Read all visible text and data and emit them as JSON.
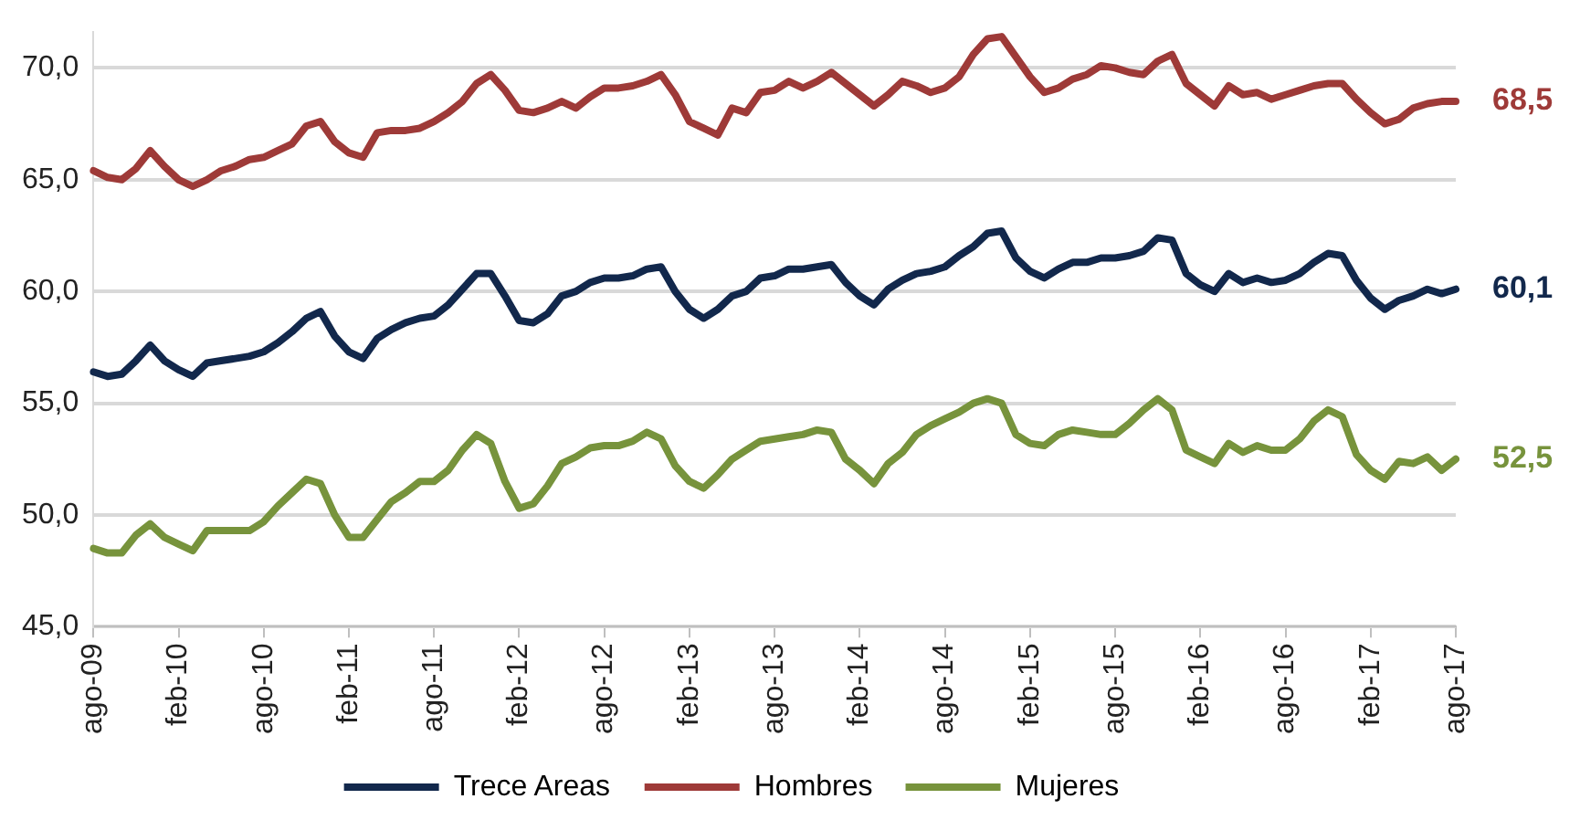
{
  "chart_data": {
    "type": "line",
    "categories": [
      "ago-09",
      null,
      null,
      null,
      null,
      null,
      "feb-10",
      null,
      null,
      null,
      null,
      null,
      "ago-10",
      null,
      null,
      null,
      null,
      null,
      "feb-11",
      null,
      null,
      null,
      null,
      null,
      "ago-11",
      null,
      null,
      null,
      null,
      null,
      "feb-12",
      null,
      null,
      null,
      null,
      null,
      "ago-12",
      null,
      null,
      null,
      null,
      null,
      "feb-13",
      null,
      null,
      null,
      null,
      null,
      "ago-13",
      null,
      null,
      null,
      null,
      null,
      "feb-14",
      null,
      null,
      null,
      null,
      null,
      "ago-14",
      null,
      null,
      null,
      null,
      null,
      "feb-15",
      null,
      null,
      null,
      null,
      null,
      "ago-15",
      null,
      null,
      null,
      null,
      null,
      "feb-16",
      null,
      null,
      null,
      null,
      null,
      "ago-16",
      null,
      null,
      null,
      null,
      null,
      "feb-17",
      null,
      null,
      null,
      null,
      null,
      "ago-17"
    ],
    "series": [
      {
        "name": "Trece Areas",
        "color": "#12284c",
        "values": [
          56.4,
          56.2,
          56.3,
          56.9,
          57.6,
          56.9,
          56.5,
          56.2,
          56.8,
          56.9,
          57.0,
          57.1,
          57.3,
          57.7,
          58.2,
          58.8,
          59.1,
          58.0,
          57.3,
          57.0,
          57.9,
          58.3,
          58.6,
          58.8,
          58.9,
          59.4,
          60.1,
          60.8,
          60.8,
          59.8,
          58.7,
          58.6,
          59.0,
          59.8,
          60.0,
          60.4,
          60.6,
          60.6,
          60.7,
          61.0,
          61.1,
          60.0,
          59.2,
          58.8,
          59.2,
          59.8,
          60.0,
          60.6,
          60.7,
          61.0,
          61.0,
          61.1,
          61.2,
          60.4,
          59.8,
          59.4,
          60.1,
          60.5,
          60.8,
          60.9,
          61.1,
          61.6,
          62.0,
          62.6,
          62.7,
          61.5,
          60.9,
          60.6,
          61.0,
          61.3,
          61.3,
          61.5,
          61.5,
          61.6,
          61.8,
          62.4,
          62.3,
          60.8,
          60.3,
          60.0,
          60.8,
          60.4,
          60.6,
          60.4,
          60.5,
          60.8,
          61.3,
          61.7,
          61.6,
          60.5,
          59.7,
          59.2,
          59.6,
          59.8,
          60.1,
          59.9,
          60.1
        ]
      },
      {
        "name": "Hombres",
        "color": "#9e3a38",
        "values": [
          65.4,
          65.1,
          65.0,
          65.5,
          66.3,
          65.6,
          65.0,
          64.7,
          65.0,
          65.4,
          65.6,
          65.9,
          66.0,
          66.3,
          66.6,
          67.4,
          67.6,
          66.7,
          66.2,
          66.0,
          67.1,
          67.2,
          67.2,
          67.3,
          67.6,
          68.0,
          68.5,
          69.3,
          69.7,
          69.0,
          68.1,
          68.0,
          68.2,
          68.5,
          68.2,
          68.7,
          69.1,
          69.1,
          69.2,
          69.4,
          69.7,
          68.8,
          67.6,
          67.3,
          67.0,
          68.2,
          68.0,
          68.9,
          69.0,
          69.4,
          69.1,
          69.4,
          69.8,
          69.3,
          68.8,
          68.3,
          68.8,
          69.4,
          69.2,
          68.9,
          69.1,
          69.6,
          70.6,
          71.3,
          71.4,
          70.5,
          69.6,
          68.9,
          69.1,
          69.5,
          69.7,
          70.1,
          70.0,
          69.8,
          69.7,
          70.3,
          70.6,
          69.3,
          68.8,
          68.3,
          69.2,
          68.8,
          68.9,
          68.6,
          68.8,
          69.0,
          69.2,
          69.3,
          69.3,
          68.6,
          68.0,
          67.5,
          67.7,
          68.2,
          68.4,
          68.5,
          68.5
        ]
      },
      {
        "name": "Mujeres",
        "color": "#77933c",
        "values": [
          48.5,
          48.3,
          48.3,
          49.1,
          49.6,
          49.0,
          48.7,
          48.4,
          49.3,
          49.3,
          49.3,
          49.3,
          49.7,
          50.4,
          51.0,
          51.6,
          51.4,
          50.0,
          49.0,
          49.0,
          49.8,
          50.6,
          51.0,
          51.5,
          51.5,
          52.0,
          52.9,
          53.6,
          53.2,
          51.5,
          50.3,
          50.5,
          51.3,
          52.3,
          52.6,
          53.0,
          53.1,
          53.1,
          53.3,
          53.7,
          53.4,
          52.2,
          51.5,
          51.2,
          51.8,
          52.5,
          52.9,
          53.3,
          53.4,
          53.5,
          53.6,
          53.8,
          53.7,
          52.5,
          52.0,
          51.4,
          52.3,
          52.8,
          53.6,
          54.0,
          54.3,
          54.6,
          55.0,
          55.2,
          55.0,
          53.6,
          53.2,
          53.1,
          53.6,
          53.8,
          53.7,
          53.6,
          53.6,
          54.1,
          54.7,
          55.2,
          54.7,
          52.9,
          52.6,
          52.3,
          53.2,
          52.8,
          53.1,
          52.9,
          52.9,
          53.4,
          54.2,
          54.7,
          54.4,
          52.7,
          52.0,
          51.6,
          52.4,
          52.3,
          52.6,
          52.0,
          52.5
        ]
      }
    ],
    "ylim": [
      45,
      71.6
    ],
    "yticks": [
      {
        "value": 45,
        "label": "45,0"
      },
      {
        "value": 50,
        "label": "50,0"
      },
      {
        "value": 55,
        "label": "55,0"
      },
      {
        "value": 60,
        "label": "60,0"
      },
      {
        "value": 65,
        "label": "65,0"
      },
      {
        "value": 70,
        "label": "70,0"
      }
    ],
    "grid": "y",
    "legend": "bottom",
    "marker": "none",
    "line_style": "solid",
    "annotations": [
      {
        "text": "68,5",
        "x": "ago-17",
        "y": 68.5
      },
      {
        "text": "60,1",
        "x": "ago-17",
        "y": 60.1
      },
      {
        "text": "52,5",
        "x": "ago-17",
        "y": 52.5
      }
    ]
  }
}
